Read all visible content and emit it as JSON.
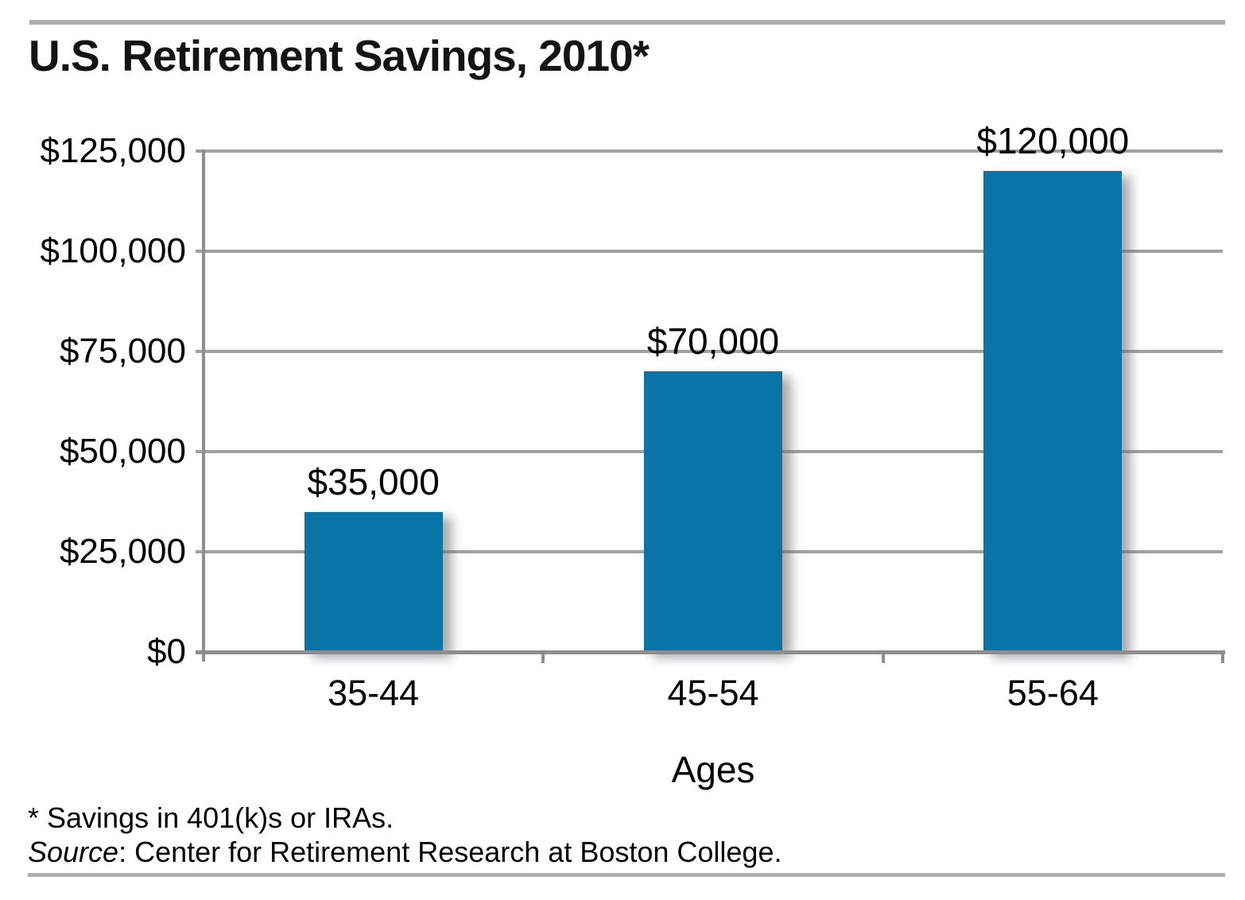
{
  "chart_data": {
    "type": "bar",
    "title": "U.S. Retirement Savings, 2010*",
    "categories": [
      "35-44",
      "45-54",
      "55-64"
    ],
    "values": [
      35000,
      70000,
      120000
    ],
    "value_labels": [
      "$35,000",
      "$70,000",
      "$120,000"
    ],
    "xlabel": "Ages",
    "ylabel": "",
    "y_tick_labels": [
      "$125,000",
      "$100,000",
      "$75,000",
      "$50,000",
      "$25,000",
      "$0"
    ],
    "ylim": [
      0,
      125000
    ],
    "y_step": 25000,
    "grid": true,
    "legend": "none",
    "bar_color": "#0a74a6",
    "gridline_color": "#a0a0a0",
    "axis_color": "#8e8e8e",
    "footnote": "* Savings in 401(k)s or IRAs.",
    "source_label": "Source",
    "source_rest": ": Center for Retirement Research at Boston College."
  }
}
